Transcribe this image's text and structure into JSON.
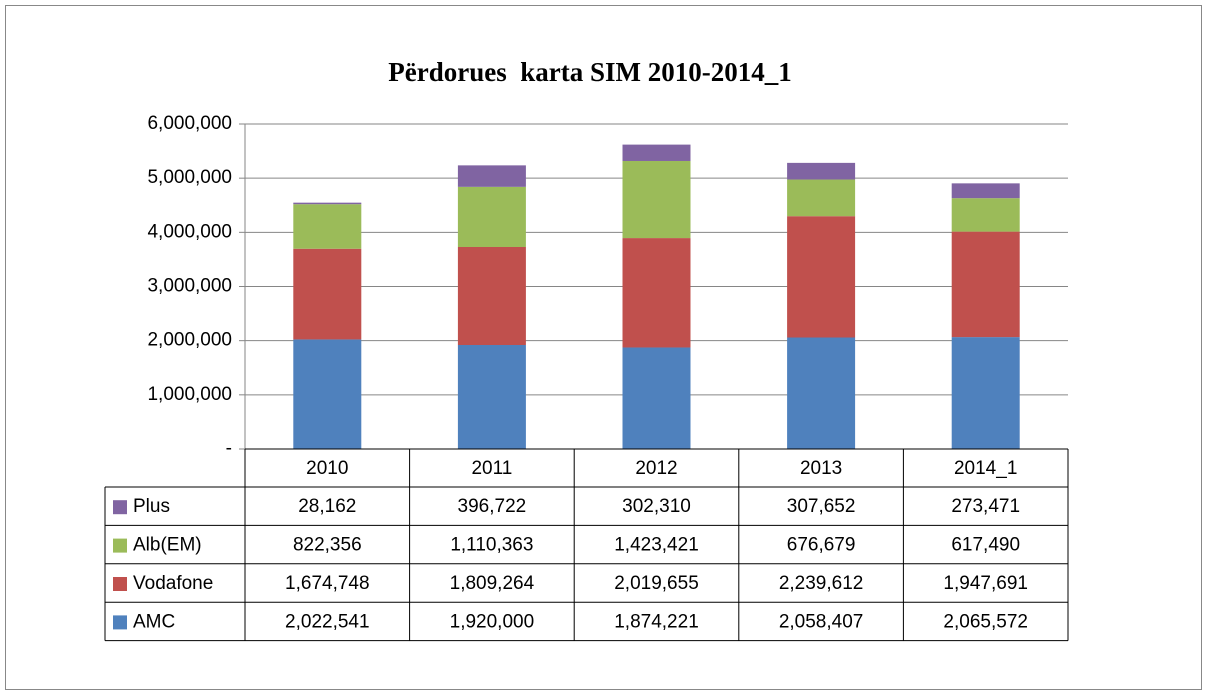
{
  "chart_data": {
    "type": "stacked_bar",
    "title": "Përdorues  karta SIM 2010-2014_1",
    "categories": [
      "2010",
      "2011",
      "2012",
      "2013",
      "2014_1"
    ],
    "series": [
      {
        "name": "AMC",
        "color": "#4f81bd",
        "values": [
          2022541,
          1920000,
          1874221,
          2058407,
          2065572
        ],
        "value_labels": [
          "2,022,541",
          "1,920,000",
          "1,874,221",
          "2,058,407",
          "2,065,572"
        ]
      },
      {
        "name": "Vodafone",
        "color": "#c0504d",
        "values": [
          1674748,
          1809264,
          2019655,
          2239612,
          1947691
        ],
        "value_labels": [
          "1,674,748",
          "1,809,264",
          "2,019,655",
          "2,239,612",
          "1,947,691"
        ]
      },
      {
        "name": "Alb(EM)",
        "color": "#9bbb59",
        "values": [
          822356,
          1110363,
          1423421,
          676679,
          617490
        ],
        "value_labels": [
          "822,356",
          "1,110,363",
          "1,423,421",
          "676,679",
          "617,490"
        ]
      },
      {
        "name": "Plus",
        "color": "#8064a2",
        "values": [
          28162,
          396722,
          302310,
          307652,
          273471
        ],
        "value_labels": [
          "28,162",
          "396,722",
          "302,310",
          "307,652",
          "273,471"
        ]
      }
    ],
    "ylim": [
      0,
      6000000
    ],
    "yticks": [
      {
        "value": 0,
        "label": "-"
      },
      {
        "value": 1000000,
        "label": "1,000,000"
      },
      {
        "value": 2000000,
        "label": "2,000,000"
      },
      {
        "value": 3000000,
        "label": "3,000,000"
      },
      {
        "value": 4000000,
        "label": "4,000,000"
      },
      {
        "value": 5000000,
        "label": "5,000,000"
      },
      {
        "value": 6000000,
        "label": "6,000,000"
      }
    ],
    "grid": true
  }
}
